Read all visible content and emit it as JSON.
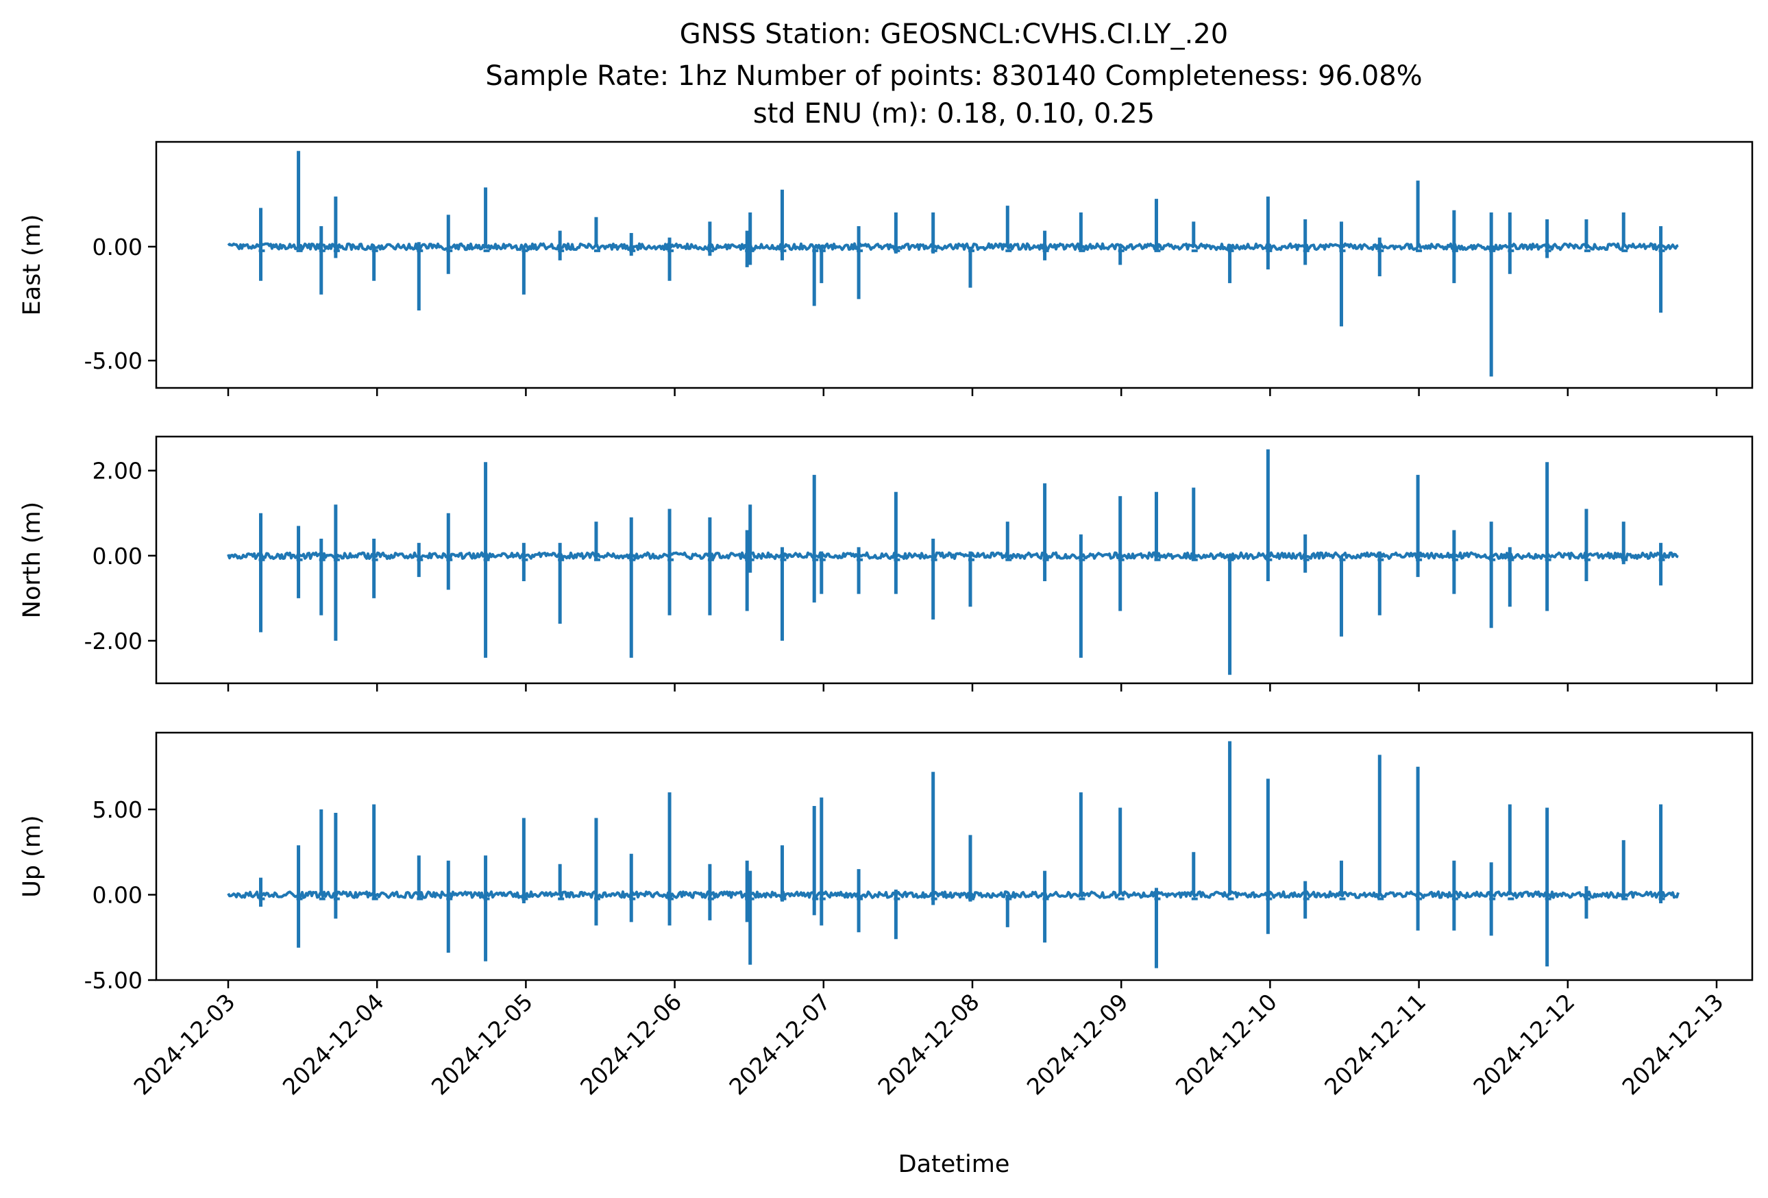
{
  "title": {
    "line1": "GNSS Station: GEOSNCL:CVHS.CI.LY_.20",
    "line2": "Sample Rate: 1hz   Number of points: 830140    Completeness:  96.08%",
    "line3": "std ENU (m):  0.18, 0.10, 0.25"
  },
  "chart_data": {
    "type": "line",
    "xlabel": "Datetime",
    "xticks": [
      "2024-12-03",
      "2024-12-04",
      "2024-12-05",
      "2024-12-06",
      "2024-12-07",
      "2024-12-08",
      "2024-12-09",
      "2024-12-10",
      "2024-12-11",
      "2024-12-12",
      "2024-12-13"
    ],
    "x_start": "2024-12-03T00:00",
    "x_end": "2024-12-12T18:00",
    "line_color": "#1f77b4",
    "grid": false,
    "panels": [
      {
        "ylabel": "East (m)",
        "ylim": [
          -6.2,
          4.6
        ],
        "yticks": [
          -5.0,
          0.0
        ],
        "ytick_labels": [
          "-5.00",
          "0.00"
        ],
        "baseline": 0.0,
        "spikes": [
          {
            "t": "2024-12-03T05:15",
            "max": 1.7,
            "min": -1.5
          },
          {
            "t": "2024-12-03T11:20",
            "max": 4.2,
            "min": 0.0
          },
          {
            "t": "2024-12-03T15:00",
            "max": 0.9,
            "min": -2.1
          },
          {
            "t": "2024-12-03T17:20",
            "max": 2.2,
            "min": -0.5
          },
          {
            "t": "2024-12-03T23:30",
            "max": 0.0,
            "min": -1.5
          },
          {
            "t": "2024-12-04T06:45",
            "max": 0.2,
            "min": -2.8
          },
          {
            "t": "2024-12-04T11:30",
            "max": 1.4,
            "min": -1.2
          },
          {
            "t": "2024-12-04T17:30",
            "max": 2.6,
            "min": 0.0
          },
          {
            "t": "2024-12-04T23:40",
            "max": 0.0,
            "min": -2.1
          },
          {
            "t": "2024-12-05T05:30",
            "max": 0.7,
            "min": -0.6
          },
          {
            "t": "2024-12-05T11:20",
            "max": 1.3,
            "min": 0.0
          },
          {
            "t": "2024-12-05T17:00",
            "max": 0.6,
            "min": -0.4
          },
          {
            "t": "2024-12-05T23:10",
            "max": 0.4,
            "min": -1.5
          },
          {
            "t": "2024-12-06T05:40",
            "max": 1.1,
            "min": -0.4
          },
          {
            "t": "2024-12-06T11:40",
            "max": 0.7,
            "min": -0.9
          },
          {
            "t": "2024-12-06T12:10",
            "max": 1.5,
            "min": -0.8
          },
          {
            "t": "2024-12-06T17:20",
            "max": 2.5,
            "min": -0.6
          },
          {
            "t": "2024-12-06T22:30",
            "max": 0.0,
            "min": -2.6
          },
          {
            "t": "2024-12-06T23:40",
            "max": 0.0,
            "min": -1.6
          },
          {
            "t": "2024-12-07T05:40",
            "max": 0.9,
            "min": -2.3
          },
          {
            "t": "2024-12-07T11:40",
            "max": 1.5,
            "min": -0.3
          },
          {
            "t": "2024-12-07T17:40",
            "max": 1.5,
            "min": -0.3
          },
          {
            "t": "2024-12-07T23:40",
            "max": 0.0,
            "min": -1.8
          },
          {
            "t": "2024-12-08T05:40",
            "max": 1.8,
            "min": 0.0
          },
          {
            "t": "2024-12-08T11:40",
            "max": 0.7,
            "min": -0.6
          },
          {
            "t": "2024-12-08T17:30",
            "max": 1.5,
            "min": -0.2
          },
          {
            "t": "2024-12-08T23:50",
            "max": 0.0,
            "min": -0.8
          },
          {
            "t": "2024-12-09T05:40",
            "max": 2.1,
            "min": 0.0
          },
          {
            "t": "2024-12-09T11:40",
            "max": 1.1,
            "min": 0.0
          },
          {
            "t": "2024-12-09T17:30",
            "max": 0.0,
            "min": -1.6
          },
          {
            "t": "2024-12-09T23:40",
            "max": 2.2,
            "min": -1.0
          },
          {
            "t": "2024-12-10T05:40",
            "max": 1.2,
            "min": -0.8
          },
          {
            "t": "2024-12-10T11:30",
            "max": 1.1,
            "min": -3.5
          },
          {
            "t": "2024-12-10T17:40",
            "max": 0.4,
            "min": -1.3
          },
          {
            "t": "2024-12-10T23:50",
            "max": 2.9,
            "min": 0.0
          },
          {
            "t": "2024-12-11T05:40",
            "max": 1.6,
            "min": -1.6
          },
          {
            "t": "2024-12-11T11:40",
            "max": 1.5,
            "min": -5.7
          },
          {
            "t": "2024-12-11T14:40",
            "max": 1.5,
            "min": -1.2
          },
          {
            "t": "2024-12-11T20:40",
            "max": 1.2,
            "min": -0.5
          },
          {
            "t": "2024-12-12T03:00",
            "max": 1.2,
            "min": 0.0
          },
          {
            "t": "2024-12-12T09:00",
            "max": 1.5,
            "min": 0.0
          },
          {
            "t": "2024-12-12T15:00",
            "max": 0.9,
            "min": -2.9
          }
        ]
      },
      {
        "ylabel": "North (m)",
        "ylim": [
          -3.0,
          2.8
        ],
        "yticks": [
          -2.0,
          0.0,
          2.0
        ],
        "ytick_labels": [
          "-2.00",
          "0.00",
          "2.00"
        ],
        "baseline": 0.0,
        "spikes": [
          {
            "t": "2024-12-03T05:15",
            "max": 1.0,
            "min": -1.8
          },
          {
            "t": "2024-12-03T11:20",
            "max": 0.7,
            "min": -1.0
          },
          {
            "t": "2024-12-03T15:00",
            "max": 0.4,
            "min": -1.4
          },
          {
            "t": "2024-12-03T17:20",
            "max": 1.2,
            "min": -2.0
          },
          {
            "t": "2024-12-03T23:30",
            "max": 0.4,
            "min": -1.0
          },
          {
            "t": "2024-12-04T06:45",
            "max": 0.3,
            "min": -0.5
          },
          {
            "t": "2024-12-04T11:30",
            "max": 1.0,
            "min": -0.8
          },
          {
            "t": "2024-12-04T17:30",
            "max": 2.2,
            "min": -2.4
          },
          {
            "t": "2024-12-04T23:40",
            "max": 0.3,
            "min": -0.6
          },
          {
            "t": "2024-12-05T05:30",
            "max": 0.3,
            "min": -1.6
          },
          {
            "t": "2024-12-05T11:20",
            "max": 0.8,
            "min": -0.1
          },
          {
            "t": "2024-12-05T17:00",
            "max": 0.9,
            "min": -2.4
          },
          {
            "t": "2024-12-05T23:10",
            "max": 1.1,
            "min": -1.4
          },
          {
            "t": "2024-12-06T05:40",
            "max": 0.9,
            "min": -1.4
          },
          {
            "t": "2024-12-06T11:40",
            "max": 0.6,
            "min": -1.3
          },
          {
            "t": "2024-12-06T12:10",
            "max": 1.2,
            "min": -0.4
          },
          {
            "t": "2024-12-06T17:20",
            "max": 0.2,
            "min": -2.0
          },
          {
            "t": "2024-12-06T22:30",
            "max": 1.9,
            "min": -1.1
          },
          {
            "t": "2024-12-06T23:40",
            "max": 0.1,
            "min": -0.9
          },
          {
            "t": "2024-12-07T05:40",
            "max": 0.2,
            "min": -0.9
          },
          {
            "t": "2024-12-07T11:40",
            "max": 1.5,
            "min": -0.9
          },
          {
            "t": "2024-12-07T17:40",
            "max": 0.4,
            "min": -1.5
          },
          {
            "t": "2024-12-07T23:40",
            "max": 0.1,
            "min": -1.2
          },
          {
            "t": "2024-12-08T05:40",
            "max": 0.8,
            "min": 0.0
          },
          {
            "t": "2024-12-08T11:40",
            "max": 1.7,
            "min": -0.6
          },
          {
            "t": "2024-12-08T17:30",
            "max": 0.5,
            "min": -2.4
          },
          {
            "t": "2024-12-08T23:50",
            "max": 1.4,
            "min": -1.3
          },
          {
            "t": "2024-12-09T05:40",
            "max": 1.5,
            "min": 0.0
          },
          {
            "t": "2024-12-09T11:40",
            "max": 1.6,
            "min": -0.1
          },
          {
            "t": "2024-12-09T17:30",
            "max": 0.0,
            "min": -2.8
          },
          {
            "t": "2024-12-09T23:40",
            "max": 2.5,
            "min": -0.6
          },
          {
            "t": "2024-12-10T05:40",
            "max": 0.5,
            "min": -0.4
          },
          {
            "t": "2024-12-10T11:30",
            "max": 0.0,
            "min": -1.9
          },
          {
            "t": "2024-12-10T17:40",
            "max": 0.1,
            "min": -1.4
          },
          {
            "t": "2024-12-10T23:50",
            "max": 1.9,
            "min": -0.5
          },
          {
            "t": "2024-12-11T05:40",
            "max": 0.6,
            "min": -0.9
          },
          {
            "t": "2024-12-11T11:40",
            "max": 0.8,
            "min": -1.7
          },
          {
            "t": "2024-12-11T14:40",
            "max": 0.2,
            "min": -1.2
          },
          {
            "t": "2024-12-11T20:40",
            "max": 2.2,
            "min": -1.3
          },
          {
            "t": "2024-12-12T03:00",
            "max": 1.1,
            "min": -0.6
          },
          {
            "t": "2024-12-12T09:00",
            "max": 0.8,
            "min": -0.2
          },
          {
            "t": "2024-12-12T15:00",
            "max": 0.3,
            "min": -0.7
          }
        ]
      },
      {
        "ylabel": "Up (m)",
        "ylim": [
          -5.0,
          9.5
        ],
        "yticks": [
          -5.0,
          0.0,
          5.0
        ],
        "ytick_labels": [
          "-5.00",
          "0.00",
          "5.00"
        ],
        "baseline": 0.0,
        "spikes": [
          {
            "t": "2024-12-03T05:15",
            "max": 1.0,
            "min": -0.7
          },
          {
            "t": "2024-12-03T11:20",
            "max": 2.9,
            "min": -3.1
          },
          {
            "t": "2024-12-03T15:00",
            "max": 5.0,
            "min": 0.0
          },
          {
            "t": "2024-12-03T17:20",
            "max": 4.8,
            "min": -1.4
          },
          {
            "t": "2024-12-03T23:30",
            "max": 5.3,
            "min": -0.3
          },
          {
            "t": "2024-12-04T06:45",
            "max": 2.3,
            "min": -0.3
          },
          {
            "t": "2024-12-04T11:30",
            "max": 2.0,
            "min": -3.4
          },
          {
            "t": "2024-12-04T17:30",
            "max": 2.3,
            "min": -3.9
          },
          {
            "t": "2024-12-04T23:40",
            "max": 4.5,
            "min": -0.5
          },
          {
            "t": "2024-12-05T05:30",
            "max": 1.8,
            "min": 0.0
          },
          {
            "t": "2024-12-05T11:20",
            "max": 4.5,
            "min": -1.8
          },
          {
            "t": "2024-12-05T17:00",
            "max": 2.4,
            "min": -1.6
          },
          {
            "t": "2024-12-05T23:10",
            "max": 6.0,
            "min": -1.8
          },
          {
            "t": "2024-12-06T05:40",
            "max": 1.8,
            "min": -1.5
          },
          {
            "t": "2024-12-06T11:40",
            "max": 2.0,
            "min": -1.6
          },
          {
            "t": "2024-12-06T12:10",
            "max": 1.4,
            "min": -4.1
          },
          {
            "t": "2024-12-06T17:20",
            "max": 2.9,
            "min": -0.4
          },
          {
            "t": "2024-12-06T22:30",
            "max": 5.2,
            "min": -1.2
          },
          {
            "t": "2024-12-06T23:40",
            "max": 5.7,
            "min": -1.8
          },
          {
            "t": "2024-12-07T05:40",
            "max": 1.5,
            "min": -2.2
          },
          {
            "t": "2024-12-07T11:40",
            "max": 0.3,
            "min": -2.6
          },
          {
            "t": "2024-12-07T17:40",
            "max": 7.2,
            "min": -0.6
          },
          {
            "t": "2024-12-07T23:40",
            "max": 3.5,
            "min": -0.4
          },
          {
            "t": "2024-12-08T05:40",
            "max": 0.0,
            "min": -1.9
          },
          {
            "t": "2024-12-08T11:40",
            "max": 1.4,
            "min": -2.8
          },
          {
            "t": "2024-12-08T17:30",
            "max": 6.0,
            "min": 0.0
          },
          {
            "t": "2024-12-08T23:50",
            "max": 5.1,
            "min": 0.0
          },
          {
            "t": "2024-12-09T05:40",
            "max": 0.4,
            "min": -4.3
          },
          {
            "t": "2024-12-09T11:40",
            "max": 2.5,
            "min": 0.0
          },
          {
            "t": "2024-12-09T17:30",
            "max": 9.0,
            "min": 0.0
          },
          {
            "t": "2024-12-09T23:40",
            "max": 6.8,
            "min": -2.3
          },
          {
            "t": "2024-12-10T05:40",
            "max": 0.8,
            "min": -1.4
          },
          {
            "t": "2024-12-10T11:30",
            "max": 2.0,
            "min": 0.0
          },
          {
            "t": "2024-12-10T17:40",
            "max": 8.2,
            "min": 0.0
          },
          {
            "t": "2024-12-10T23:50",
            "max": 7.5,
            "min": -2.1
          },
          {
            "t": "2024-12-11T05:40",
            "max": 2.0,
            "min": -2.1
          },
          {
            "t": "2024-12-11T11:40",
            "max": 1.9,
            "min": -2.4
          },
          {
            "t": "2024-12-11T14:40",
            "max": 5.3,
            "min": 0.0
          },
          {
            "t": "2024-12-11T20:40",
            "max": 5.1,
            "min": -4.2
          },
          {
            "t": "2024-12-12T03:00",
            "max": 0.5,
            "min": -1.4
          },
          {
            "t": "2024-12-12T09:00",
            "max": 3.2,
            "min": -0.3
          },
          {
            "t": "2024-12-12T15:00",
            "max": 5.3,
            "min": -0.5
          }
        ]
      }
    ]
  }
}
